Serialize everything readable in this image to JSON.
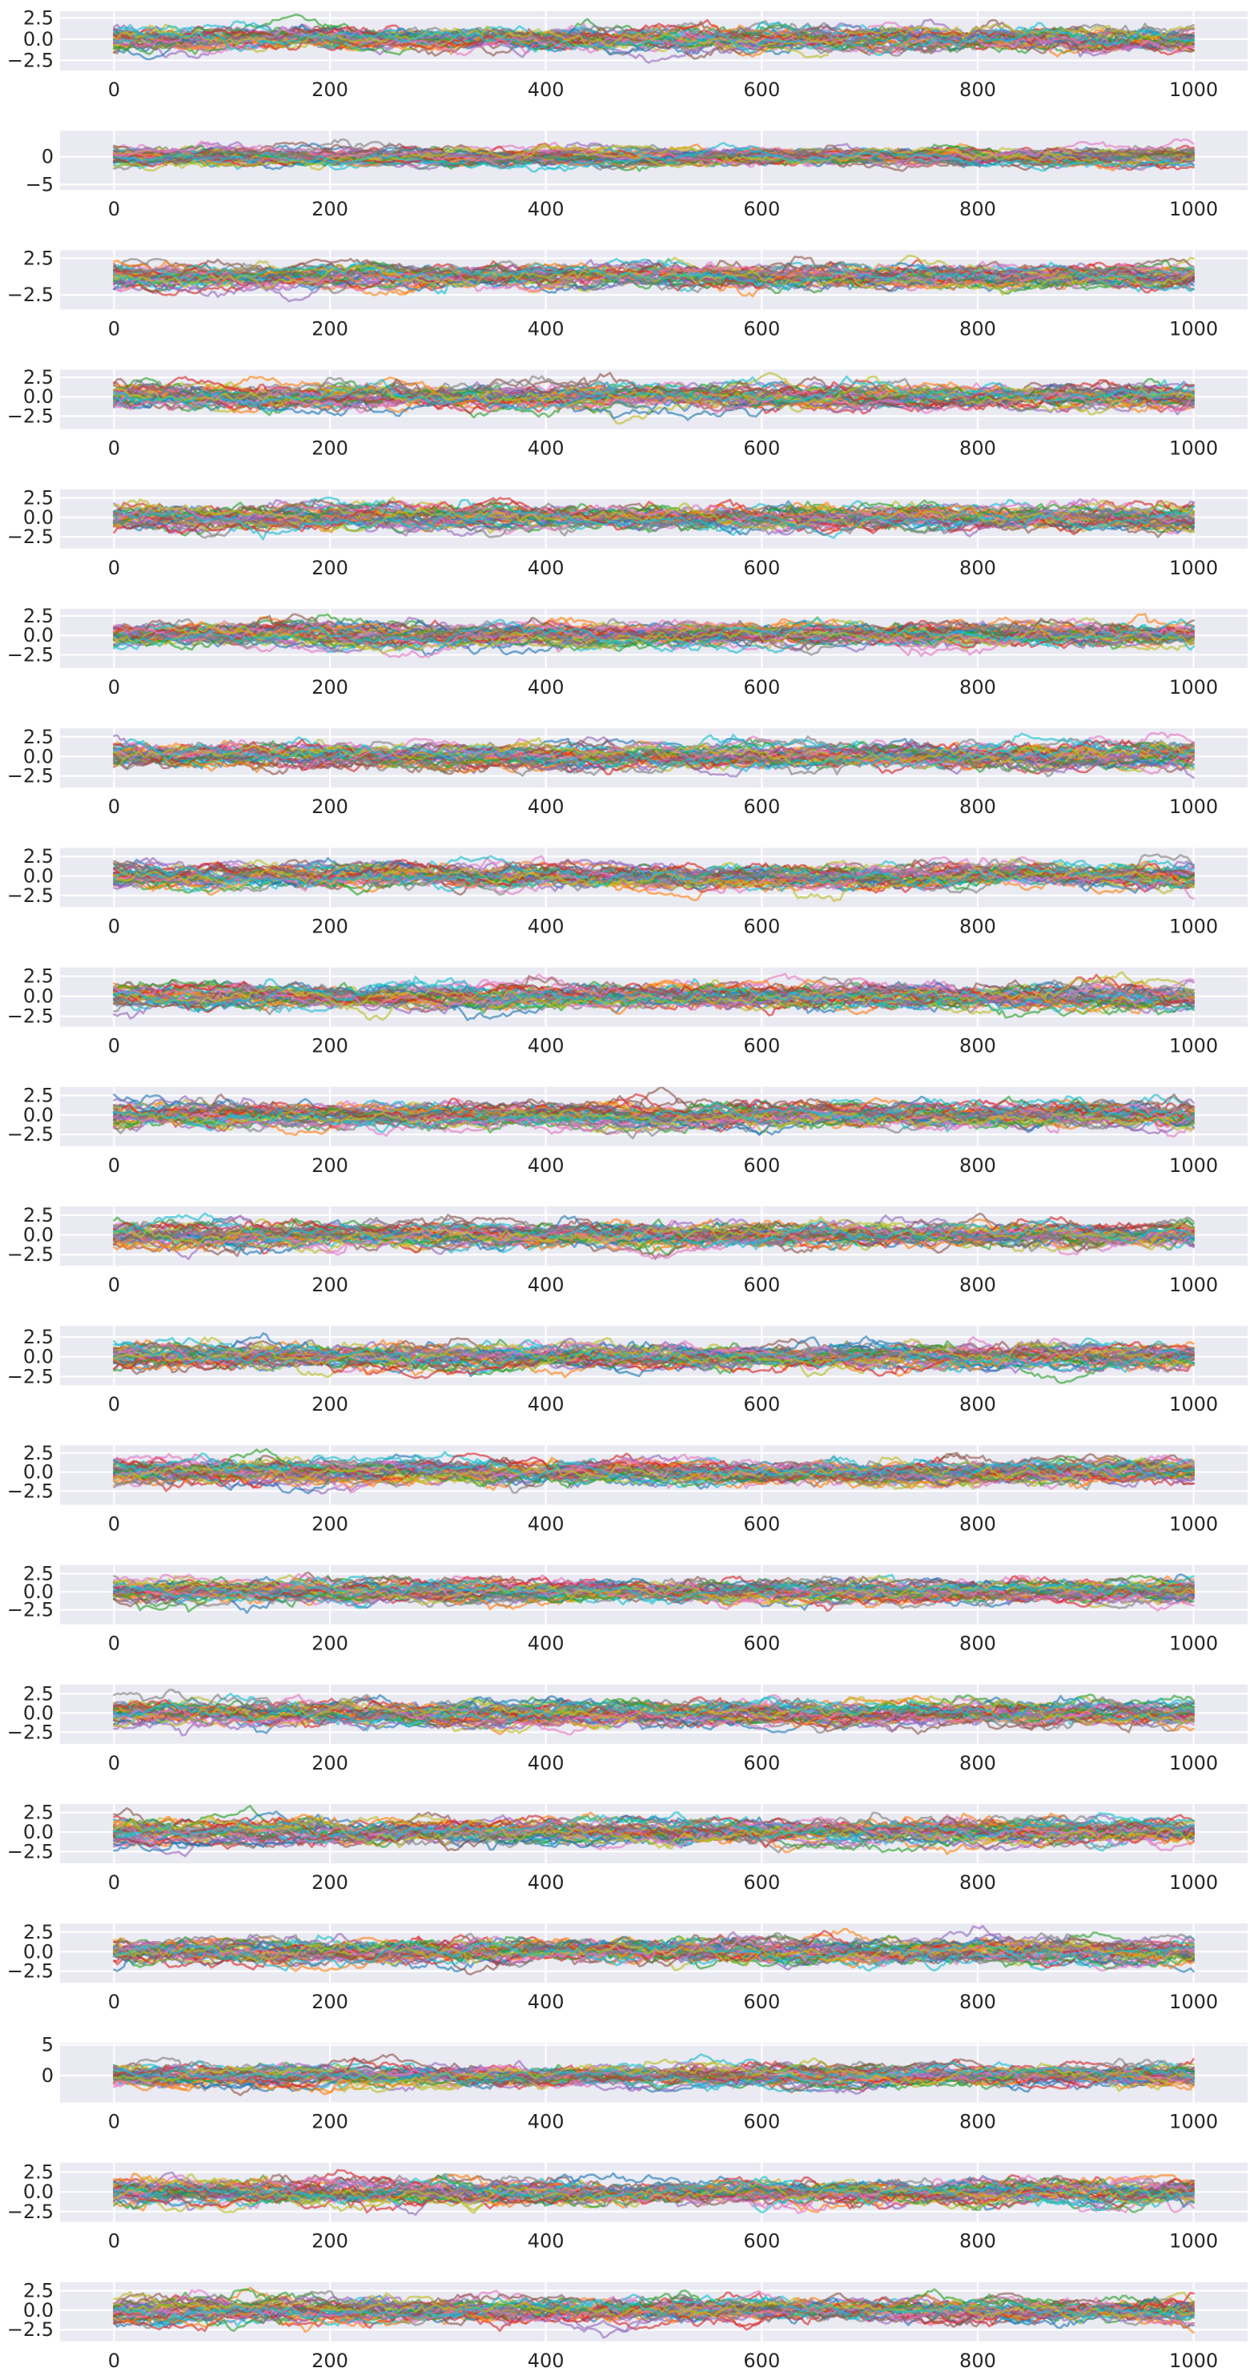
{
  "palette": [
    "#1f77b4",
    "#ff7f0e",
    "#2ca02c",
    "#d62728",
    "#9467bd",
    "#8c564b",
    "#e377c2",
    "#7f7f7f",
    "#bcbd22",
    "#17becf"
  ],
  "background": "#eaeaf2",
  "chart_data": [
    {
      "type": "line",
      "x_range": [
        0,
        1000
      ],
      "xlim": [
        -50,
        1050
      ],
      "ylim": [
        -3.7,
        3.3
      ],
      "xticks": [
        0,
        200,
        400,
        600,
        800,
        1000
      ],
      "xtick_labels": [
        "0",
        "200",
        "400",
        "600",
        "800",
        "1000"
      ],
      "yticks": [
        2.5,
        0.0,
        -2.5
      ],
      "ytick_labels": [
        "2.5",
        "0.0",
        "−2.5"
      ],
      "grid": true,
      "n_series": 40,
      "series_scale": 0.9
    },
    {
      "type": "line",
      "x_range": [
        0,
        1000
      ],
      "xlim": [
        -50,
        1050
      ],
      "ylim": [
        -6.0,
        4.7
      ],
      "xticks": [
        0,
        200,
        400,
        600,
        800,
        1000
      ],
      "xtick_labels": [
        "0",
        "200",
        "400",
        "600",
        "800",
        "1000"
      ],
      "yticks": [
        0,
        -5
      ],
      "ytick_labels": [
        "0",
        "−5"
      ],
      "grid": true,
      "n_series": 40,
      "series_scale": 1.0
    },
    {
      "type": "line",
      "x_range": [
        0,
        1000
      ],
      "xlim": [
        -50,
        1050
      ],
      "ylim": [
        -4.5,
        3.6
      ],
      "xticks": [
        0,
        200,
        400,
        600,
        800,
        1000
      ],
      "xtick_labels": [
        "0",
        "200",
        "400",
        "600",
        "800",
        "1000"
      ],
      "yticks": [
        2.5,
        -2.5
      ],
      "ytick_labels": [
        "2.5",
        "−2.5"
      ],
      "grid": true,
      "n_series": 40,
      "series_scale": 1.0
    },
    {
      "type": "line",
      "x_range": [
        0,
        1000
      ],
      "xlim": [
        -50,
        1050
      ],
      "ylim": [
        -4.2,
        3.5
      ],
      "xticks": [
        0,
        200,
        400,
        600,
        800,
        1000
      ],
      "xtick_labels": [
        "0",
        "200",
        "400",
        "600",
        "800",
        "1000"
      ],
      "yticks": [
        2.5,
        0.0,
        -2.5
      ],
      "ytick_labels": [
        "2.5",
        "0.0",
        "−2.5"
      ],
      "grid": true,
      "n_series": 40,
      "series_scale": 1.0
    },
    {
      "type": "line",
      "x_range": [
        0,
        1000
      ],
      "xlim": [
        -50,
        1050
      ],
      "ylim": [
        -4.0,
        3.6
      ],
      "xticks": [
        0,
        200,
        400,
        600,
        800,
        1000
      ],
      "xtick_labels": [
        "0",
        "200",
        "400",
        "600",
        "800",
        "1000"
      ],
      "yticks": [
        2.5,
        0.0,
        -2.5
      ],
      "ytick_labels": [
        "2.5",
        "0.0",
        "−2.5"
      ],
      "grid": true,
      "n_series": 40,
      "series_scale": 1.0
    },
    {
      "type": "line",
      "x_range": [
        0,
        1000
      ],
      "xlim": [
        -50,
        1050
      ],
      "ylim": [
        -4.2,
        3.4
      ],
      "xticks": [
        0,
        200,
        400,
        600,
        800,
        1000
      ],
      "xtick_labels": [
        "0",
        "200",
        "400",
        "600",
        "800",
        "1000"
      ],
      "yticks": [
        2.5,
        0.0,
        -2.5
      ],
      "ytick_labels": [
        "2.5",
        "0.0",
        "−2.5"
      ],
      "grid": true,
      "n_series": 40,
      "series_scale": 1.0
    },
    {
      "type": "line",
      "x_range": [
        0,
        1000
      ],
      "xlim": [
        -50,
        1050
      ],
      "ylim": [
        -4.0,
        3.6
      ],
      "xticks": [
        0,
        200,
        400,
        600,
        800,
        1000
      ],
      "xtick_labels": [
        "0",
        "200",
        "400",
        "600",
        "800",
        "1000"
      ],
      "yticks": [
        2.5,
        0.0,
        -2.5
      ],
      "ytick_labels": [
        "2.5",
        "0.0",
        "−2.5"
      ],
      "grid": true,
      "n_series": 40,
      "series_scale": 1.0
    },
    {
      "type": "line",
      "x_range": [
        0,
        1000
      ],
      "xlim": [
        -50,
        1050
      ],
      "ylim": [
        -4.0,
        3.6
      ],
      "xticks": [
        0,
        200,
        400,
        600,
        800,
        1000
      ],
      "xtick_labels": [
        "0",
        "200",
        "400",
        "600",
        "800",
        "1000"
      ],
      "yticks": [
        2.5,
        0.0,
        -2.5
      ],
      "ytick_labels": [
        "2.5",
        "0.0",
        "−2.5"
      ],
      "grid": true,
      "n_series": 40,
      "series_scale": 1.0
    },
    {
      "type": "line",
      "x_range": [
        0,
        1000
      ],
      "xlim": [
        -50,
        1050
      ],
      "ylim": [
        -3.8,
        3.6
      ],
      "xticks": [
        0,
        200,
        400,
        600,
        800,
        1000
      ],
      "xtick_labels": [
        "0",
        "200",
        "400",
        "600",
        "800",
        "1000"
      ],
      "yticks": [
        2.5,
        0.0,
        -2.5
      ],
      "ytick_labels": [
        "2.5",
        "0.0",
        "−2.5"
      ],
      "grid": true,
      "n_series": 40,
      "series_scale": 1.0
    },
    {
      "type": "line",
      "x_range": [
        0,
        1000
      ],
      "xlim": [
        -50,
        1050
      ],
      "ylim": [
        -4.0,
        3.6
      ],
      "xticks": [
        0,
        200,
        400,
        600,
        800,
        1000
      ],
      "xtick_labels": [
        "0",
        "200",
        "400",
        "600",
        "800",
        "1000"
      ],
      "yticks": [
        2.5,
        0.0,
        -2.5
      ],
      "ytick_labels": [
        "2.5",
        "0.0",
        "−2.5"
      ],
      "grid": true,
      "n_series": 40,
      "series_scale": 1.0
    },
    {
      "type": "line",
      "x_range": [
        0,
        1000
      ],
      "xlim": [
        -50,
        1050
      ],
      "ylim": [
        -3.9,
        3.6
      ],
      "xticks": [
        0,
        200,
        400,
        600,
        800,
        1000
      ],
      "xtick_labels": [
        "0",
        "200",
        "400",
        "600",
        "800",
        "1000"
      ],
      "yticks": [
        2.5,
        0.0,
        -2.5
      ],
      "ytick_labels": [
        "2.5",
        "0.0",
        "−2.5"
      ],
      "grid": true,
      "n_series": 40,
      "series_scale": 1.0
    },
    {
      "type": "line",
      "x_range": [
        0,
        1000
      ],
      "xlim": [
        -50,
        1050
      ],
      "ylim": [
        -3.6,
        3.9
      ],
      "xticks": [
        0,
        200,
        400,
        600,
        800,
        1000
      ],
      "xtick_labels": [
        "0",
        "200",
        "400",
        "600",
        "800",
        "1000"
      ],
      "yticks": [
        2.5,
        0.0,
        -2.5
      ],
      "ytick_labels": [
        "2.5",
        "0.0",
        "−2.5"
      ],
      "grid": true,
      "n_series": 40,
      "series_scale": 1.0
    },
    {
      "type": "line",
      "x_range": [
        0,
        1000
      ],
      "xlim": [
        -50,
        1050
      ],
      "ylim": [
        -4.3,
        3.5
      ],
      "xticks": [
        0,
        200,
        400,
        600,
        800,
        1000
      ],
      "xtick_labels": [
        "0",
        "200",
        "400",
        "600",
        "800",
        "1000"
      ],
      "yticks": [
        2.5,
        0.0,
        -2.5
      ],
      "ytick_labels": [
        "2.5",
        "0.0",
        "−2.5"
      ],
      "grid": true,
      "n_series": 40,
      "series_scale": 1.0
    },
    {
      "type": "line",
      "x_range": [
        0,
        1000
      ],
      "xlim": [
        -50,
        1050
      ],
      "ylim": [
        -4.5,
        3.7
      ],
      "xticks": [
        0,
        200,
        400,
        600,
        800,
        1000
      ],
      "xtick_labels": [
        "0",
        "200",
        "400",
        "600",
        "800",
        "1000"
      ],
      "yticks": [
        2.5,
        0.0,
        -2.5
      ],
      "ytick_labels": [
        "2.5",
        "0.0",
        "−2.5"
      ],
      "grid": true,
      "n_series": 40,
      "series_scale": 1.0
    },
    {
      "type": "line",
      "x_range": [
        0,
        1000
      ],
      "xlim": [
        -50,
        1050
      ],
      "ylim": [
        -4.0,
        3.7
      ],
      "xticks": [
        0,
        200,
        400,
        600,
        800,
        1000
      ],
      "xtick_labels": [
        "0",
        "200",
        "400",
        "600",
        "800",
        "1000"
      ],
      "yticks": [
        2.5,
        0.0,
        -2.5
      ],
      "ytick_labels": [
        "2.5",
        "0.0",
        "−2.5"
      ],
      "grid": true,
      "n_series": 40,
      "series_scale": 1.0
    },
    {
      "type": "line",
      "x_range": [
        0,
        1000
      ],
      "xlim": [
        -50,
        1050
      ],
      "ylim": [
        -4.0,
        3.6
      ],
      "xticks": [
        0,
        200,
        400,
        600,
        800,
        1000
      ],
      "xtick_labels": [
        "0",
        "200",
        "400",
        "600",
        "800",
        "1000"
      ],
      "yticks": [
        2.5,
        0.0,
        -2.5
      ],
      "ytick_labels": [
        "2.5",
        "0.0",
        "−2.5"
      ],
      "grid": true,
      "n_series": 40,
      "series_scale": 1.0
    },
    {
      "type": "line",
      "x_range": [
        0,
        1000
      ],
      "xlim": [
        -50,
        1050
      ],
      "ylim": [
        -4.0,
        3.6
      ],
      "xticks": [
        0,
        200,
        400,
        600,
        800,
        1000
      ],
      "xtick_labels": [
        "0",
        "200",
        "400",
        "600",
        "800",
        "1000"
      ],
      "yticks": [
        2.5,
        0.0,
        -2.5
      ],
      "ytick_labels": [
        "2.5",
        "0.0",
        "−2.5"
      ],
      "grid": true,
      "n_series": 40,
      "series_scale": 1.0
    },
    {
      "type": "line",
      "x_range": [
        0,
        1000
      ],
      "xlim": [
        -50,
        1050
      ],
      "ylim": [
        -4.4,
        5.3
      ],
      "xticks": [
        0,
        200,
        400,
        600,
        800,
        1000
      ],
      "xtick_labels": [
        "0",
        "200",
        "400",
        "600",
        "800",
        "1000"
      ],
      "yticks": [
        5,
        0
      ],
      "ytick_labels": [
        "5",
        "0"
      ],
      "grid": true,
      "n_series": 40,
      "series_scale": 1.1
    },
    {
      "type": "line",
      "x_range": [
        0,
        1000
      ],
      "xlim": [
        -50,
        1050
      ],
      "ylim": [
        -3.8,
        3.7
      ],
      "xticks": [
        0,
        200,
        400,
        600,
        800,
        1000
      ],
      "xtick_labels": [
        "0",
        "200",
        "400",
        "600",
        "800",
        "1000"
      ],
      "yticks": [
        2.5,
        0.0,
        -2.5
      ],
      "ytick_labels": [
        "2.5",
        "0.0",
        "−2.5"
      ],
      "grid": true,
      "n_series": 40,
      "series_scale": 1.0
    },
    {
      "type": "line",
      "x_range": [
        0,
        1000
      ],
      "xlim": [
        -50,
        1050
      ],
      "ylim": [
        -4.0,
        3.6
      ],
      "xticks": [
        0,
        200,
        400,
        600,
        800,
        1000
      ],
      "xtick_labels": [
        "0",
        "200",
        "400",
        "600",
        "800",
        "1000"
      ],
      "yticks": [
        2.5,
        0.0,
        -2.5
      ],
      "ytick_labels": [
        "2.5",
        "0.0",
        "−2.5"
      ],
      "grid": true,
      "n_series": 40,
      "series_scale": 1.0
    }
  ]
}
